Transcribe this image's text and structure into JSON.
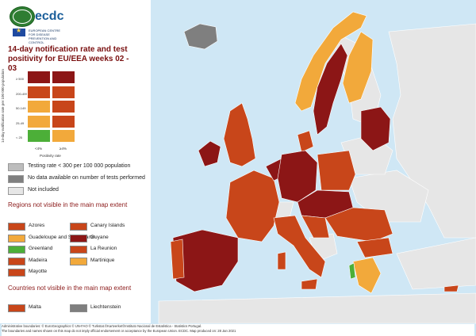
{
  "logo": {
    "name": "ecdc",
    "subtitle": "EUROPEAN CENTRE FOR DISEASE PREVENTION AND CONTROL"
  },
  "title": "14-day notification rate and test positivity for EU/EEA weeks 02 - 03",
  "matrix": {
    "y_axis_label": "14-day notification rate per 100 000 population",
    "x_axis_label": "Positivity rate",
    "row_labels": [
      "≥ 500",
      "200-499",
      "50-149",
      "25-49",
      "< 25"
    ],
    "col_labels": [
      "<4%",
      "≥4%"
    ],
    "cells": [
      [
        "#8c1616",
        "#8c1616"
      ],
      [
        "#c8461a",
        "#c8461a"
      ],
      [
        "#f2a93b",
        "#c8461a"
      ],
      [
        "#f2a93b",
        "#c8461a"
      ],
      [
        "#4caf38",
        "#f2a93b"
      ]
    ]
  },
  "special_legend": [
    {
      "label": "Testing rate < 300 per 100 000 population",
      "color": "#bdbdbd"
    },
    {
      "label": "No data available on number of tests performed",
      "color": "#7f7f7f"
    },
    {
      "label": "Not included",
      "color": "#e6e6e6"
    }
  ],
  "regions_title": "Regions not visible in the main map extent",
  "regions": [
    {
      "label": "Azores",
      "color": "#c8461a"
    },
    {
      "label": "Canary Islands",
      "color": "#c8461a"
    },
    {
      "label": "Guadeloupe and Saint Martin",
      "color": "#f2a93b"
    },
    {
      "label": "Guyane",
      "color": "#8c1616"
    },
    {
      "label": "Greenland",
      "color": "#4caf38"
    },
    {
      "label": "La Reunion",
      "color": "#c8461a"
    },
    {
      "label": "Madeira",
      "color": "#c8461a"
    },
    {
      "label": "Martinique",
      "color": "#f2a93b"
    },
    {
      "label": "Mayotte",
      "color": "#c8461a"
    }
  ],
  "countries_title": "Countries not visible in the main map extent",
  "countries": [
    {
      "label": "Malta",
      "color": "#c8461a"
    },
    {
      "label": "Liechtenstein",
      "color": "#7f7f7f"
    }
  ],
  "footer": {
    "line1": "Administrative boundaries: © EuroGeographics © UN-FAO © Turkstat.©Kartverket©Instituto Nacional de Estatística - Statistics Portugal.",
    "line2": "The boundaries and names shown on this map do not imply official endorsement or acceptance by the European Union. ECDC. Map produced on: 28 Jan 2021"
  },
  "colors": {
    "dark_red": "#8c1616",
    "red": "#c8461a",
    "orange": "#f2a93b",
    "green": "#4caf38",
    "grey": "#7f7f7f",
    "non_eu": "#e6e6e6",
    "sea": "#cfe7f5"
  }
}
